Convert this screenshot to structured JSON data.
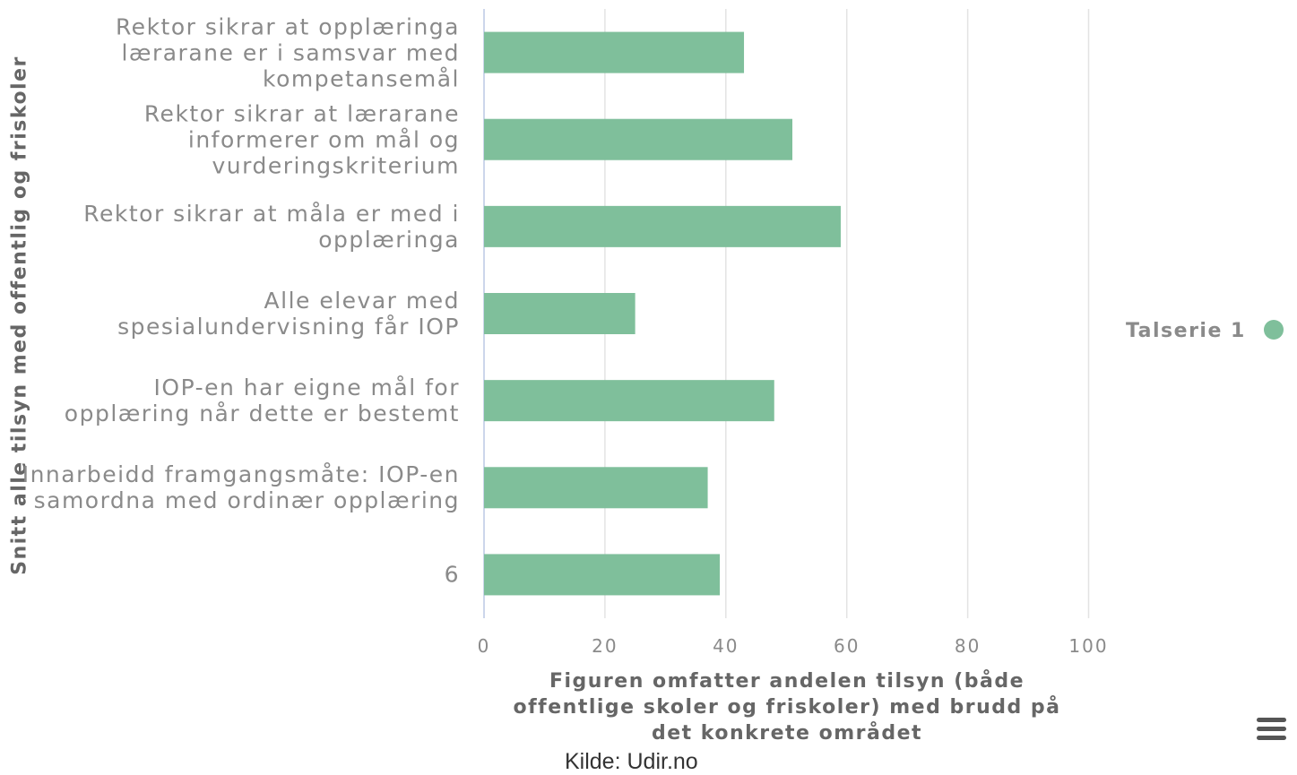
{
  "chart_data": {
    "type": "bar",
    "orientation": "horizontal",
    "categories": [
      "Rektor sikrar at opplæringa lærarane er i samsvar med kompetansemål",
      "Rektor sikrar at lærarane informerer om mål og vurderingskriterium",
      "Rektor sikrar at måla er med i opplæringa",
      "Alle elevar med spesialundervisning får IOP",
      "IOP-en har eigne mål for opplæring når dette er bestemt",
      "Innarbeidd framgangsmåte: IOP-en samordna med ordinær opplæring",
      "6"
    ],
    "series": [
      {
        "name": "Talserie 1",
        "color": "#7fbf9b",
        "values": [
          43,
          51,
          59,
          25,
          48,
          37,
          39
        ]
      }
    ],
    "xlim": [
      0,
      100
    ],
    "xticks": [
      0,
      20,
      40,
      60,
      80,
      100
    ],
    "grid": true,
    "x_label": "Figuren omfatter andelen tilsyn (både offentlige skoler og friskoler) med brudd på det konkrete området",
    "y_label": "Snitt alle tilsyn med offentlig og friskoler",
    "source": "Kilde: Udir.no",
    "legend": "right"
  }
}
